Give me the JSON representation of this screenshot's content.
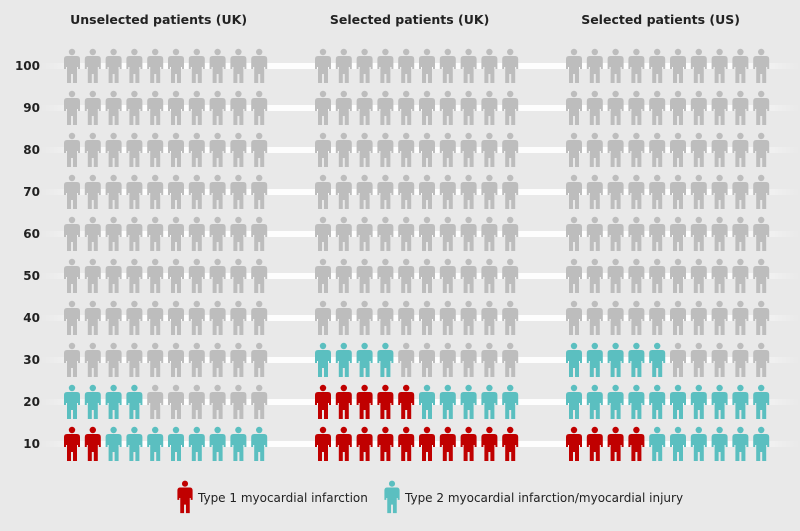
{
  "chart_data": {
    "type": "pictogram",
    "total_per_panel": 100,
    "icons_per_row": 10,
    "y_tick_labels": [
      "10",
      "20",
      "30",
      "40",
      "50",
      "60",
      "70",
      "80",
      "90",
      "100"
    ],
    "panels": [
      {
        "title": "Unselected patients (UK)",
        "type1": 2,
        "type2": 12
      },
      {
        "title": "Selected patients (UK)",
        "type1": 15,
        "type2": 9
      },
      {
        "title": "Selected patients (US)",
        "type1": 4,
        "type2": 21
      }
    ],
    "legend": [
      {
        "label": "Type 1 myocardial infarction",
        "color": "#c00000"
      },
      {
        "label": "Type 2 myocardial infarction/myocardial injury",
        "color": "#5bbfc0"
      }
    ],
    "other_color": "#bdbdbd"
  }
}
